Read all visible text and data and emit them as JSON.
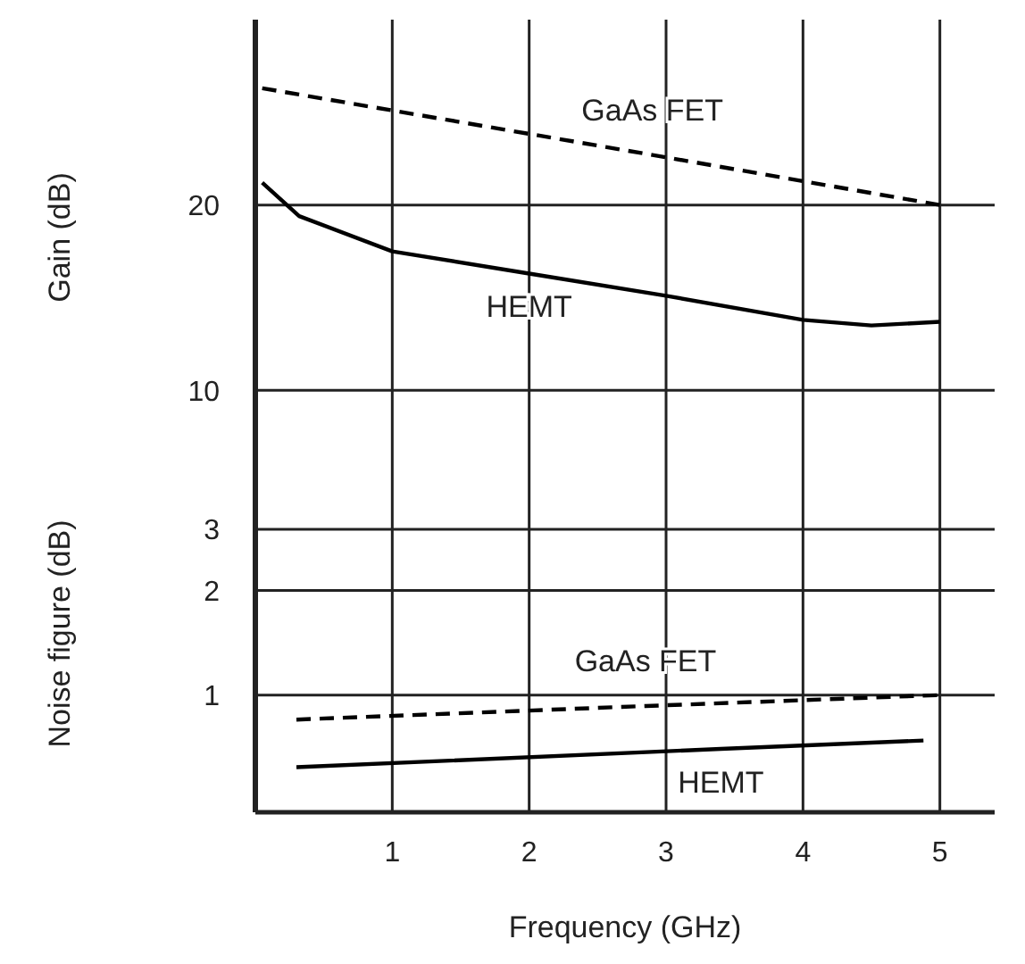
{
  "chart_data": [
    {
      "type": "line",
      "ylabel": "Gain (dB)",
      "xlim": [
        0,
        5.4
      ],
      "xticks": [
        1,
        2,
        3,
        4,
        5
      ],
      "ylim": [
        6.5,
        30
      ],
      "yticks": [
        10,
        20
      ],
      "grid": true,
      "tick_labels": "y",
      "marker": "none",
      "series": [
        {
          "name": "GaAs FET",
          "color": "#000000",
          "line_style": "dashed",
          "x": [
            0.05,
            2.9,
            5
          ],
          "values": [
            26.3,
            22.7,
            20
          ]
        },
        {
          "name": "HEMT",
          "color": "#000000",
          "line_style": "solid",
          "x": [
            0.05,
            0.32,
            1,
            2,
            3,
            4,
            4.5,
            5
          ],
          "values": [
            21.2,
            19.4,
            17.5,
            16.3,
            15.1,
            13.8,
            13.5,
            13.7
          ]
        }
      ]
    },
    {
      "type": "line",
      "xlabel": "Frequency (GHz)",
      "ylabel": "Noise figure (dB)",
      "xlim": [
        0,
        5.4
      ],
      "xticks": [
        1,
        2,
        3,
        4,
        5
      ],
      "ylim": [
        0.46,
        4.9
      ],
      "yticks": [
        1,
        2,
        3
      ],
      "log": "y",
      "grid": true,
      "marker": "none",
      "series": [
        {
          "name": "GaAs FET",
          "color": "#000000",
          "line_style": "dashed",
          "x": [
            0.3,
            2.85,
            5
          ],
          "values": [
            0.85,
            0.93,
            1.0
          ]
        },
        {
          "name": "HEMT",
          "color": "#000000",
          "line_style": "solid",
          "x": [
            0.3,
            3.4,
            4.88
          ],
          "values": [
            0.62,
            0.7,
            0.74
          ]
        }
      ]
    }
  ]
}
